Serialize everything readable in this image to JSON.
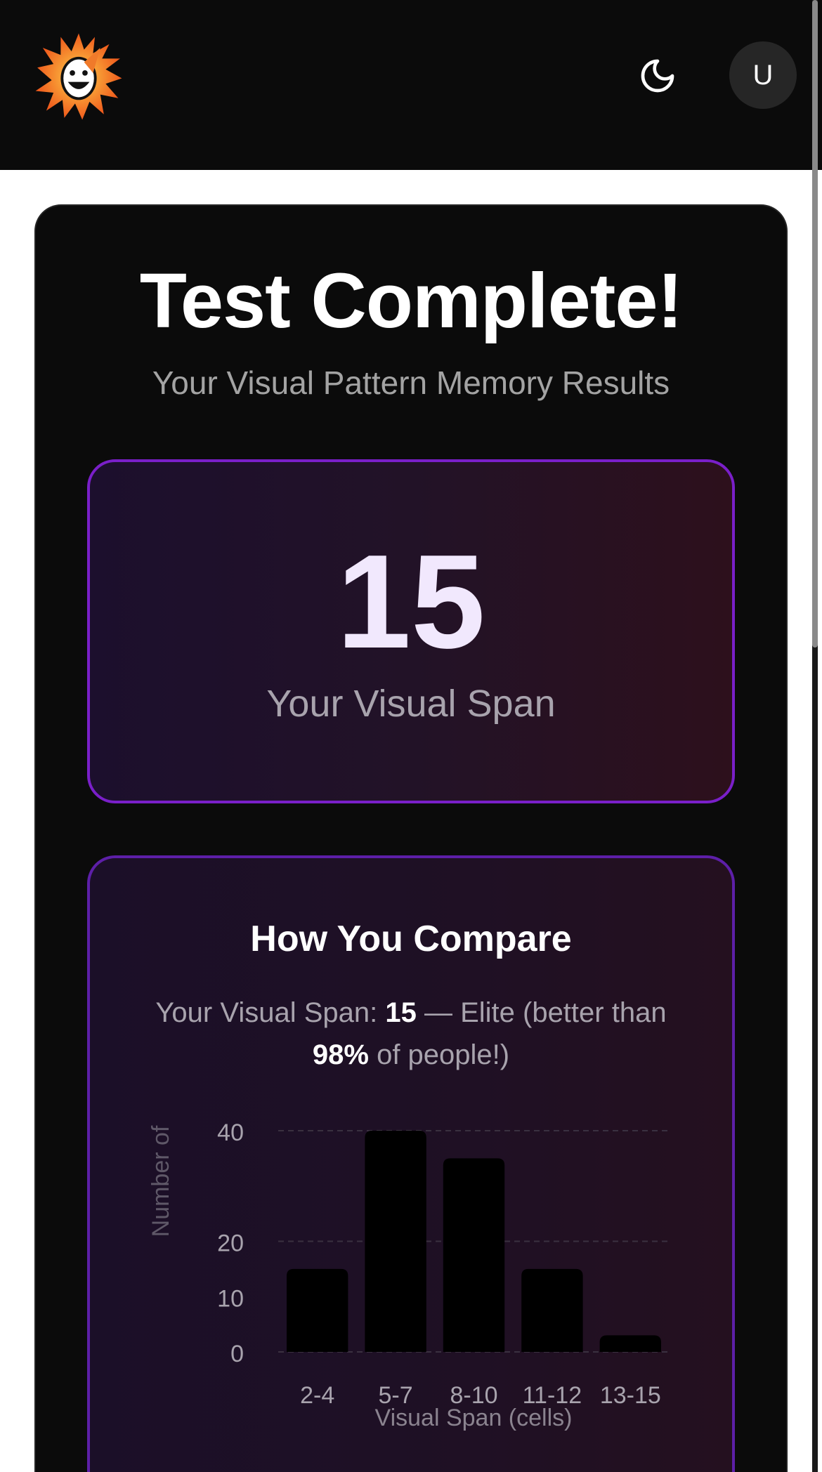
{
  "header": {
    "logo": "party-sun-mascot",
    "theme_icon": "moon-icon",
    "avatar_initial": "U"
  },
  "main": {
    "title": "Test Complete!",
    "subtitle": "Your Visual Pattern Memory Results",
    "score": {
      "value": "15",
      "label": "Your Visual Span"
    },
    "compare": {
      "title": "How You Compare",
      "line_prefix": "Your Visual Span: ",
      "line_score": "15",
      "line_mid": " — Elite (better than ",
      "line_percent": "98%",
      "line_suffix": " of people!)"
    }
  },
  "colors": {
    "accent": "#7a1fc9",
    "score_text": "#f1e8fd",
    "bars": "#000000"
  },
  "chart_data": {
    "type": "bar",
    "categories": [
      "2-4",
      "5-7",
      "8-10",
      "11-12",
      "13-15"
    ],
    "values": [
      15,
      40,
      35,
      15,
      3
    ],
    "xlabel": "Visual Span (cells)",
    "ylabel": "Number of",
    "yticks": [
      0,
      10,
      20,
      40
    ],
    "ylim": [
      0,
      40
    ],
    "grid": true
  }
}
